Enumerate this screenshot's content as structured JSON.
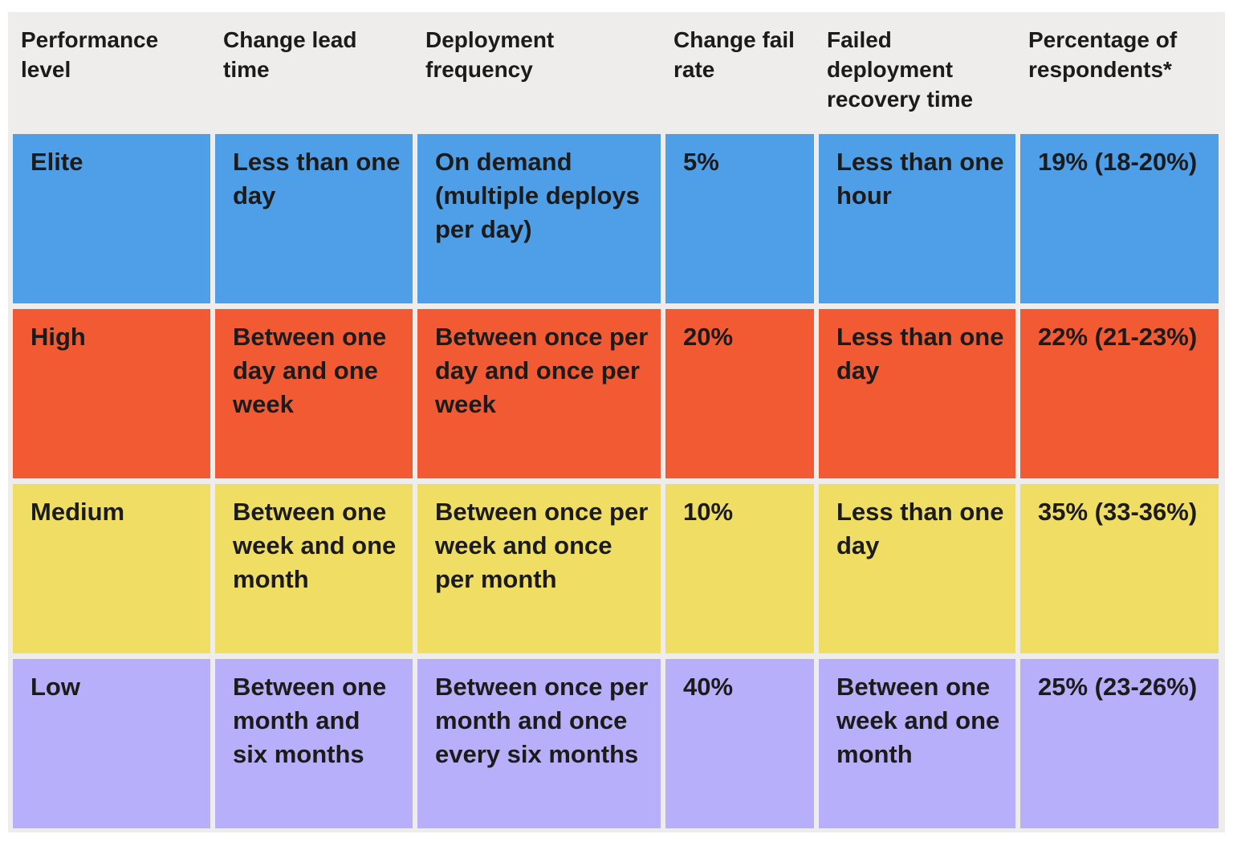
{
  "table": {
    "header": [
      "Performance level",
      "Change lead time",
      "Deployment frequency",
      "Change fail rate",
      "Failed deployment recovery time",
      "Percentage of respondents*"
    ],
    "rows": [
      {
        "color": "#4f9fe8",
        "cells": [
          "Elite",
          "Less than one day",
          "On demand (multiple deploys per day)",
          "5%",
          "Less than one hour",
          "19% (18-20%)"
        ]
      },
      {
        "color": "#f25a33",
        "cells": [
          "High",
          "Between one day and one week",
          "Between once per day and once per week",
          "20%",
          "Less than one day",
          "22% (21-23%)"
        ]
      },
      {
        "color": "#f0dd64",
        "cells": [
          "Medium",
          "Between one week and one month",
          "Between once per week and once per month",
          "10%",
          "Less than one day",
          "35% (33-36%)"
        ]
      },
      {
        "color": "#b7affa",
        "cells": [
          "Low",
          "Between one month and six months",
          "Between once per month and once every six months",
          "40%",
          "Between one week and one month",
          "25% (23-26%)"
        ]
      }
    ]
  }
}
